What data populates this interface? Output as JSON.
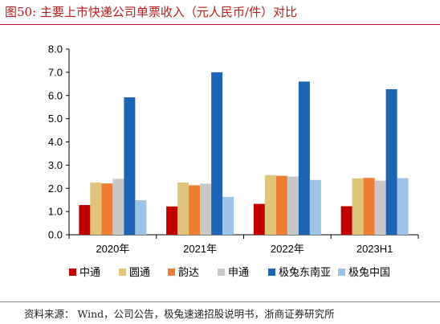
{
  "figure": {
    "title": "图50:   主要上市快递公司单票收入（元人民币/件）对比",
    "source": "资料来源：  Wind，公司公告，极兔速递招股说明书，浙商证券研究所"
  },
  "chart_data": {
    "type": "bar",
    "title": "",
    "xlabel": "",
    "ylabel": "",
    "ylim": [
      0,
      8
    ],
    "ytick_values": [
      0,
      1,
      2,
      3,
      4,
      5,
      6,
      7,
      8
    ],
    "ytick_labels": [
      "0.0",
      "1.0",
      "2.0",
      "3.0",
      "4.0",
      "5.0",
      "6.0",
      "7.0",
      "8.0"
    ],
    "categories": [
      "2020年",
      "2021年",
      "2022年",
      "2023H1"
    ],
    "grid": false,
    "legend_position": "bottom",
    "series": [
      {
        "name": "中通",
        "color": "#c00000",
        "values": [
          1.28,
          1.22,
          1.33,
          1.23
        ]
      },
      {
        "name": "圆通",
        "color": "#e0c47a",
        "values": [
          2.25,
          2.25,
          2.57,
          2.43
        ]
      },
      {
        "name": "韵达",
        "color": "#ed7d31",
        "values": [
          2.21,
          2.13,
          2.54,
          2.45
        ]
      },
      {
        "name": "申通",
        "color": "#c8c8c8",
        "values": [
          2.41,
          2.2,
          2.51,
          2.33
        ]
      },
      {
        "name": "极兔东南亚",
        "color": "#1f63b5",
        "values": [
          5.92,
          7.0,
          6.6,
          6.27
        ]
      },
      {
        "name": "极兔中国",
        "color": "#9dc3e6",
        "values": [
          1.49,
          1.63,
          2.36,
          2.44
        ]
      }
    ]
  }
}
